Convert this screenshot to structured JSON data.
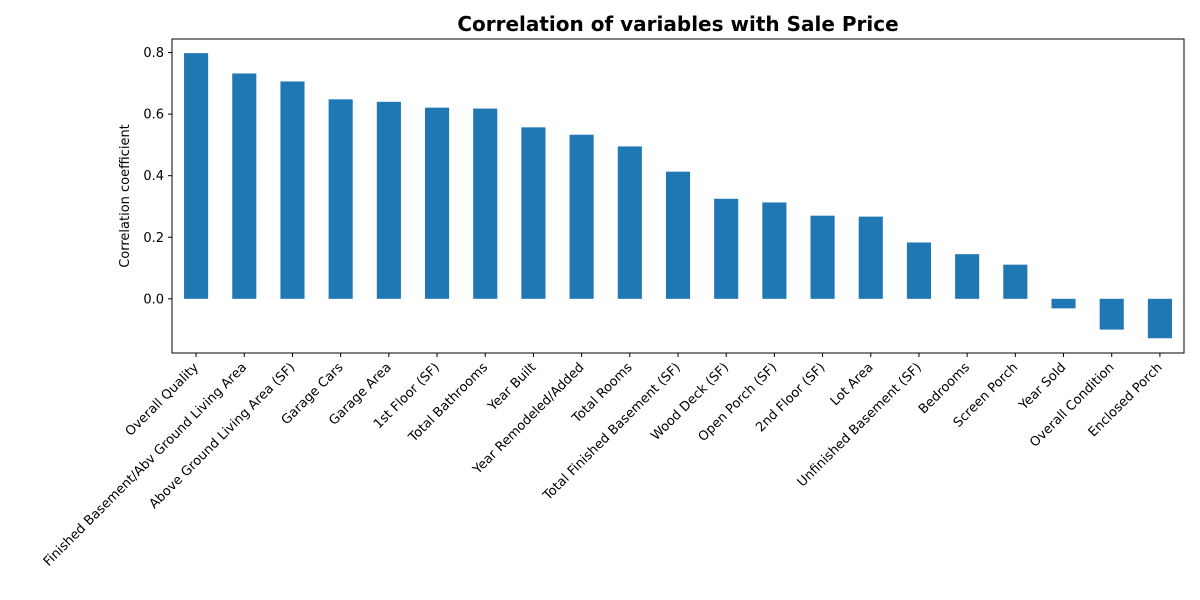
{
  "chart_data": {
    "type": "bar",
    "title": "Correlation of variables with Sale Price",
    "xlabel": "",
    "ylabel": "Correlation coefficient",
    "categories": [
      "Overall Quality",
      "Finished Basement/Abv Ground Living Area",
      "Above Ground Living Area (SF)",
      "Garage Cars",
      "Garage Area",
      "1st Floor (SF)",
      "Total Bathrooms",
      "Year Built",
      "Year Remodeled/Added",
      "Total Rooms",
      "Total Finished Basement (SF)",
      "Wood Deck (SF)",
      "Open Porch (SF)",
      "2nd Floor (SF)",
      "Lot Area",
      "Unfinished Basement (SF)",
      "Bedrooms",
      "Screen Porch",
      "Year Sold",
      "Overall Condition",
      "Enclosed Porch"
    ],
    "values": [
      0.798,
      0.732,
      0.706,
      0.648,
      0.64,
      0.621,
      0.618,
      0.557,
      0.533,
      0.495,
      0.413,
      0.325,
      0.313,
      0.27,
      0.267,
      0.183,
      0.145,
      0.111,
      -0.031,
      -0.1,
      -0.128
    ],
    "ylim": [
      -0.176,
      0.844
    ],
    "yticks": [
      "0.0",
      "0.2",
      "0.4",
      "0.6",
      "0.8"
    ],
    "ytick_values": [
      0.0,
      0.2,
      0.4,
      0.6,
      0.8
    ],
    "bar_color": "#1f77b4",
    "grid": false,
    "legend": "none"
  }
}
